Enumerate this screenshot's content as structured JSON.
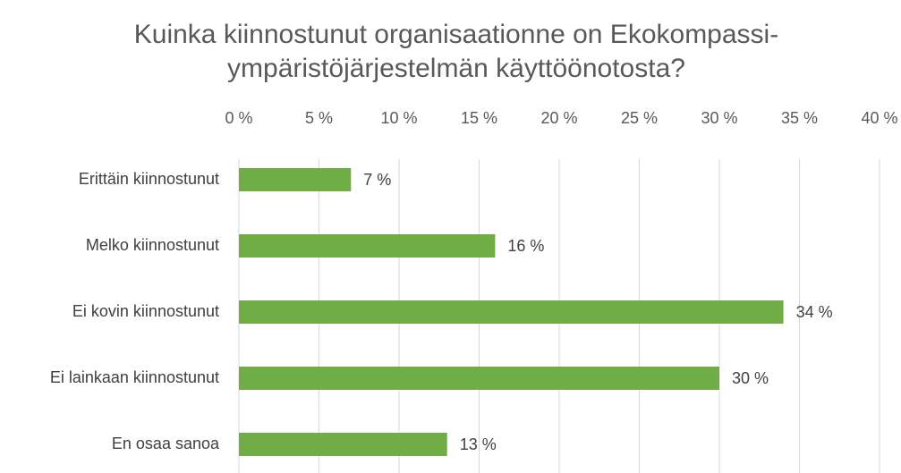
{
  "chart_data": {
    "type": "bar",
    "orientation": "horizontal",
    "title": [
      "Kuinka kiinnostunut organisaationne on Ekokompassi-",
      "ympäristöjärjestelmän käyttöönotosta?"
    ],
    "categories": [
      "Erittäin kiinnostunut",
      "Melko kiinnostunut",
      "Ei kovin kiinnostunut",
      "Ei lainkaan kiinnostunut",
      "En osaa sanoa"
    ],
    "values": [
      7,
      16,
      34,
      30,
      13
    ],
    "value_labels": [
      "7 %",
      "16 %",
      "34 %",
      "30 %",
      "13 %"
    ],
    "color": "#70ad47",
    "xlim": [
      0,
      40
    ],
    "xticks": [
      {
        "value": 0,
        "label": "0 %"
      },
      {
        "value": 5,
        "label": "5 %"
      },
      {
        "value": 10,
        "label": "10 %"
      },
      {
        "value": 15,
        "label": "15 %"
      },
      {
        "value": 20,
        "label": "20 %"
      },
      {
        "value": 25,
        "label": "25 %"
      },
      {
        "value": 30,
        "label": "30 %"
      },
      {
        "value": 35,
        "label": "35 %"
      },
      {
        "value": 40,
        "label": "40 %"
      }
    ],
    "grid": true
  }
}
